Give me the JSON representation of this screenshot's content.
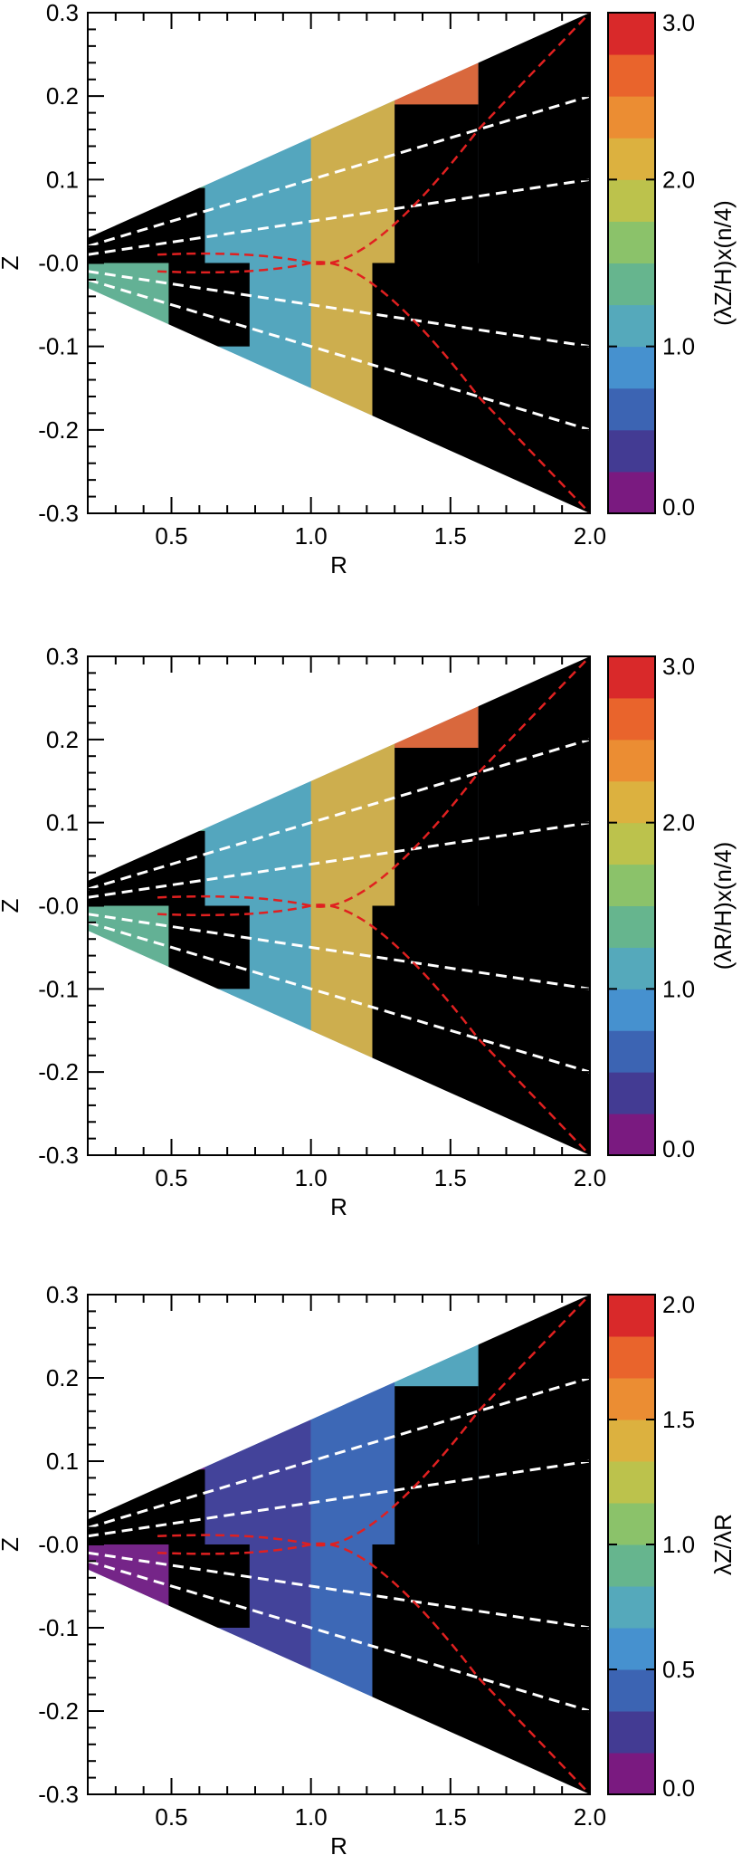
{
  "colormap": [
    "#7a1a80",
    "#433b93",
    "#3c64b3",
    "#4691cf",
    "#55a9bb",
    "#66b58e",
    "#8bc26a",
    "#bcc24c",
    "#dcb13f",
    "#eb8d33",
    "#e9642c",
    "#d9292a"
  ],
  "chart_data": [
    {
      "type": "heatmap",
      "xlabel": "R",
      "ylabel": "Z",
      "xlim": [
        0.2,
        2.0
      ],
      "ylim": [
        -0.3,
        0.3
      ],
      "xticks": [
        "0.5",
        "1.0",
        "1.5",
        "2.0"
      ],
      "yticks": [
        "0.3",
        "0.2",
        "0.1",
        "-0.0",
        "-0.1",
        "-0.2",
        "-0.3"
      ],
      "colorbar": {
        "label": "(λZ/H)x(n/4)",
        "range": [
          0.0,
          3.0
        ],
        "ticks": [
          "3.0",
          "2.0",
          "1.0",
          "0.0"
        ]
      },
      "white_dashed_lines_slope": [
        0.1,
        0.05,
        -0.05,
        -0.1
      ],
      "red_dashed_curves": true
    },
    {
      "type": "heatmap",
      "xlabel": "R",
      "ylabel": "Z",
      "xlim": [
        0.2,
        2.0
      ],
      "ylim": [
        -0.3,
        0.3
      ],
      "xticks": [
        "0.5",
        "1.0",
        "1.5",
        "2.0"
      ],
      "yticks": [
        "0.3",
        "0.2",
        "0.1",
        "-0.0",
        "-0.1",
        "-0.2",
        "-0.3"
      ],
      "colorbar": {
        "label": "(λR/H)x(n/4)",
        "range": [
          0.0,
          3.0
        ],
        "ticks": [
          "3.0",
          "2.0",
          "1.0",
          "0.0"
        ]
      },
      "white_dashed_lines_slope": [
        0.1,
        0.05,
        -0.05,
        -0.1
      ],
      "red_dashed_curves": true
    },
    {
      "type": "heatmap",
      "xlabel": "R",
      "ylabel": "Z",
      "xlim": [
        0.2,
        2.0
      ],
      "ylim": [
        -0.3,
        0.3
      ],
      "xticks": [
        "0.5",
        "1.0",
        "1.5",
        "2.0"
      ],
      "yticks": [
        "0.3",
        "0.2",
        "0.1",
        "-0.0",
        "-0.1",
        "-0.2",
        "-0.3"
      ],
      "colorbar": {
        "label": "λZ/λR",
        "range": [
          0.0,
          2.0
        ],
        "ticks": [
          "2.0",
          "1.5",
          "1.0",
          "0.5",
          "0.0"
        ]
      },
      "white_dashed_lines_slope": [
        0.1,
        0.05,
        -0.05,
        -0.1
      ],
      "red_dashed_curves": true
    }
  ]
}
